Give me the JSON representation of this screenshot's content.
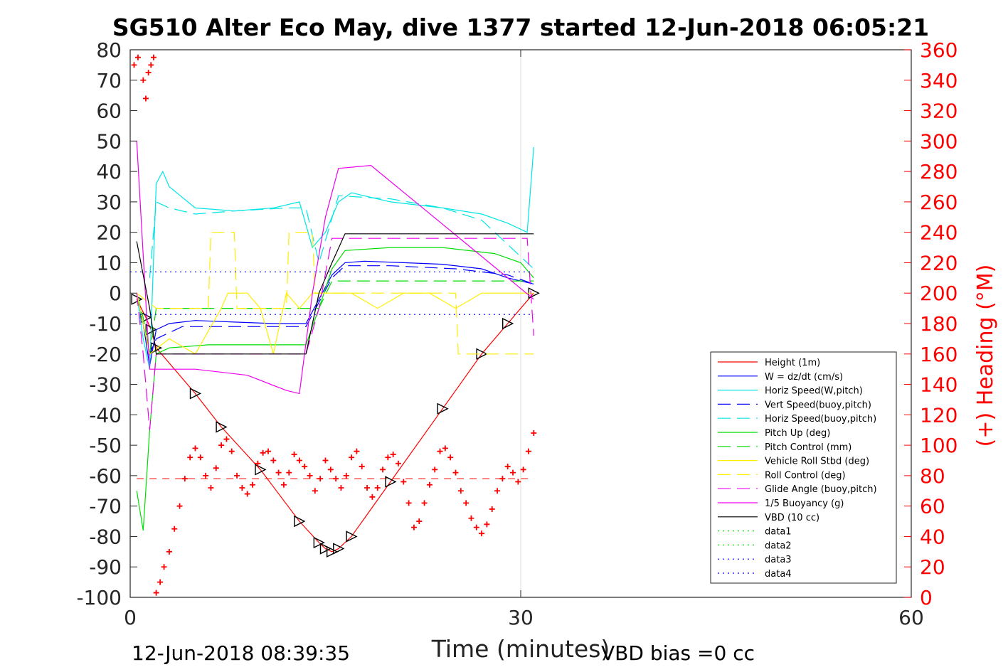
{
  "chart_data": {
    "type": "line",
    "title": "SG510 Alter Eco May, dive 1377 started 12-Jun-2018 06:05:21",
    "xlabel": "Time (minutes)",
    "ylabel_right": "(+) Heading (°M)",
    "xlim": [
      0,
      60
    ],
    "ylim": [
      -100,
      80
    ],
    "ylim_right": [
      0,
      360
    ],
    "x_ticks": [
      "0",
      "30",
      "60"
    ],
    "y_ticks": [
      "80",
      "70",
      "60",
      "50",
      "40",
      "30",
      "20",
      "10",
      "0",
      "-10",
      "-20",
      "-30",
      "-40",
      "-50",
      "-60",
      "-70",
      "-80",
      "-90",
      "-100"
    ],
    "y_right_ticks": [
      "360",
      "340",
      "320",
      "300",
      "280",
      "260",
      "240",
      "220",
      "200",
      "180",
      "160",
      "140",
      "120",
      "100",
      "80",
      "60",
      "40",
      "20",
      "0"
    ],
    "footer_left": "12-Jun-2018 08:39:35",
    "footer_right": "VBD bias =0 cc",
    "grid": "x-only at 30",
    "legend_position": "lower-right",
    "series": [
      {
        "name": "Height (1m)",
        "color": "#ff0000",
        "style": "solid",
        "marker": "triangle",
        "x": [
          0.5,
          1.2,
          1.6,
          2.0,
          5.0,
          7.0,
          10.0,
          13.0,
          14.5,
          15.0,
          15.5,
          16.0,
          17.0,
          20.0,
          24.0,
          27.0,
          29.0,
          31.0
        ],
        "y": [
          -2,
          -8,
          -12,
          -18,
          -33,
          -44,
          -58,
          -75,
          -82,
          -84,
          -85,
          -84,
          -80,
          -62,
          -38,
          -20,
          -10,
          0
        ]
      },
      {
        "name": "W = dz/dt (cm/s)",
        "color": "#0000ff",
        "style": "solid",
        "x": [
          0.5,
          1.0,
          1.5,
          2.0,
          3.0,
          5.0,
          8.0,
          11.0,
          13.5,
          14.5,
          15.5,
          16.5,
          18.0,
          21.0,
          24.0,
          27.0,
          29.0,
          31.0
        ],
        "y": [
          0,
          -10,
          -24,
          -12,
          -10,
          -9,
          -9.5,
          -10,
          -10,
          -2,
          6,
          10,
          10.5,
          10,
          9.5,
          8,
          5,
          3
        ]
      },
      {
        "name": "Horiz Speed(W,pitch)",
        "color": "#00e5e5",
        "style": "solid",
        "x": [
          0.5,
          1.0,
          1.5,
          2.0,
          2.5,
          3.0,
          5.0,
          8.0,
          11.0,
          13.0,
          14.0,
          15.0,
          16.0,
          17.0,
          20.0,
          24.0,
          27.0,
          29.0,
          30.5,
          31.0
        ],
        "y": [
          0,
          -15,
          -25,
          36,
          40,
          35,
          28,
          27,
          28,
          30,
          15,
          20,
          30,
          33,
          30,
          28,
          26,
          23,
          20,
          48
        ]
      },
      {
        "name": "Vert Speed(buoy,pitch)",
        "color": "#0000ff",
        "style": "dashed",
        "x": [
          0.5,
          1.5,
          2.0,
          4.0,
          8.0,
          12.0,
          13.5,
          14.5,
          15.5,
          16.5,
          20.0,
          25.0,
          29.0,
          31.0
        ],
        "y": [
          0,
          -20,
          -15,
          -11,
          -11,
          -11,
          -11,
          -3,
          5,
          9,
          9,
          8,
          6,
          3
        ]
      },
      {
        "name": "Horiz Speed(buoy,pitch)",
        "color": "#00e5e5",
        "style": "dashed",
        "x": [
          1.5,
          2.0,
          3.0,
          5.0,
          8.0,
          12.0,
          13.5,
          14.5,
          16.0,
          20.0,
          24.0,
          27.0,
          29.0,
          31.0
        ],
        "y": [
          5,
          30,
          28,
          26,
          27,
          28,
          28,
          10,
          32,
          31,
          28,
          24,
          16,
          8
        ]
      },
      {
        "name": "Pitch Up (deg)",
        "color": "#00dd00",
        "style": "solid",
        "x": [
          0.5,
          1.0,
          1.5,
          2.0,
          3.0,
          6.0,
          10.0,
          13.5,
          14.5,
          15.5,
          16.5,
          20.0,
          24.0,
          28.0,
          30.0,
          31.0
        ],
        "y": [
          -65,
          -78,
          -45,
          -20,
          -18,
          -17,
          -17,
          -17,
          -5,
          8,
          14,
          15,
          15,
          13,
          10,
          5
        ]
      },
      {
        "name": "Pitch Control (mm)",
        "color": "#00dd00",
        "style": "dashed",
        "x": [
          0.5,
          1.0,
          1.5,
          2.0,
          13.5,
          14.5,
          15.5,
          30.0,
          31.0
        ],
        "y": [
          0,
          -8,
          -20,
          -5,
          -5,
          -5,
          4,
          4,
          4
        ]
      },
      {
        "name": "Vehicle Roll Stbd (deg)",
        "color": "#ffee00",
        "style": "solid",
        "x": [
          0.5,
          1.5,
          3.0,
          5.0,
          7.0,
          7.5,
          9.0,
          10.0,
          11.0,
          12.0,
          13.0,
          14.0,
          15.0,
          17.0,
          19.0,
          21.0,
          23.0,
          25.0,
          27.0,
          29.0,
          31.0
        ],
        "y": [
          0,
          -20,
          -15,
          -20,
          -5,
          0,
          0,
          -5,
          -20,
          0,
          -5,
          0,
          0,
          0,
          -5,
          0,
          0,
          -5,
          0,
          0,
          0
        ]
      },
      {
        "name": "Roll Control (deg)",
        "color": "#ffee00",
        "style": "dashed",
        "x": [
          0.5,
          2.0,
          5.0,
          6.0,
          6.2,
          8.0,
          8.2,
          12.0,
          12.2,
          14.0,
          14.2,
          25.0,
          25.2,
          31.0
        ],
        "y": [
          0,
          -5,
          -5,
          -5,
          20,
          20,
          -5,
          -5,
          20,
          20,
          0,
          0,
          -20,
          -20
        ]
      },
      {
        "name": "Glide Angle (buoy,pitch)",
        "color": "#ee00ee",
        "style": "dashed",
        "x": [
          0.5,
          1.0,
          1.5,
          2.0,
          3.0,
          8.0,
          13.5,
          14.5,
          15.5,
          17.0,
          22.0,
          28.0,
          30.5,
          31.0
        ],
        "y": [
          0,
          -20,
          -45,
          -20,
          -20,
          -20,
          -20,
          -5,
          18,
          18,
          18,
          18,
          18,
          -14
        ]
      },
      {
        "name": "1/5 Buoyancy (g)",
        "color": "#ee00ee",
        "style": "solid",
        "x": [
          0.5,
          1.5,
          2.0,
          5.0,
          9.0,
          12.0,
          13.0,
          14.0,
          15.0,
          16.0,
          18.5,
          31.0
        ],
        "y": [
          50,
          -25,
          -25,
          -25,
          -27,
          -32,
          -33,
          0,
          25,
          41,
          42,
          -2
        ]
      },
      {
        "name": "VBD (10 cc)",
        "color": "#000000",
        "style": "solid",
        "x": [
          0.5,
          1.5,
          2.0,
          13.5,
          14.5,
          15.5,
          16.5,
          31.0
        ],
        "y": [
          17,
          -5,
          -20,
          -20,
          0,
          10,
          19.5,
          19.5
        ]
      },
      {
        "name": "data1",
        "color": "#00dd00",
        "style": "dotted",
        "x": [],
        "y": []
      },
      {
        "name": "data2",
        "color": "#00dd00",
        "style": "dotted",
        "x": [],
        "y": []
      },
      {
        "name": "data3",
        "color": "#0000ff",
        "style": "dotted",
        "x": [
          0,
          31
        ],
        "y": [
          7,
          7
        ]
      },
      {
        "name": "data4",
        "color": "#0000ff",
        "style": "dotted",
        "x": [
          0,
          31
        ],
        "y": [
          -7,
          -7
        ]
      }
    ],
    "heading": {
      "color": "#ff0000",
      "marker": "plus",
      "reference_line": 78,
      "x": [
        0.3,
        0.6,
        1.0,
        1.2,
        1.4,
        1.6,
        1.8,
        2.0,
        2.3,
        2.6,
        3.0,
        3.4,
        3.8,
        4.2,
        4.6,
        5.0,
        5.4,
        5.8,
        6.2,
        6.6,
        7.0,
        7.4,
        7.8,
        8.2,
        8.6,
        9.0,
        9.4,
        9.8,
        10.2,
        10.6,
        11.0,
        11.4,
        11.8,
        12.2,
        12.6,
        13.0,
        13.4,
        13.8,
        14.2,
        14.6,
        15.0,
        15.4,
        15.8,
        16.2,
        16.6,
        17.0,
        17.4,
        17.8,
        18.2,
        18.6,
        19.0,
        19.4,
        19.8,
        20.2,
        20.6,
        21.0,
        21.4,
        21.8,
        22.2,
        22.6,
        23.0,
        23.4,
        23.8,
        24.2,
        24.6,
        25.0,
        25.4,
        25.8,
        26.2,
        26.6,
        27.0,
        27.4,
        27.8,
        28.2,
        28.6,
        29.0,
        29.4,
        29.8,
        30.2,
        30.6,
        31.0
      ],
      "y": [
        350,
        355,
        340,
        328,
        345,
        350,
        355,
        3,
        10,
        20,
        30,
        45,
        60,
        78,
        92,
        98,
        92,
        80,
        72,
        85,
        100,
        104,
        96,
        80,
        72,
        68,
        74,
        88,
        95,
        96,
        90,
        82,
        74,
        82,
        94,
        90,
        86,
        80,
        70,
        78,
        90,
        84,
        78,
        72,
        80,
        92,
        96,
        86,
        72,
        66,
        72,
        84,
        92,
        94,
        88,
        76,
        62,
        46,
        50,
        62,
        74,
        84,
        96,
        98,
        92,
        82,
        70,
        62,
        52,
        46,
        42,
        48,
        58,
        70,
        78,
        86,
        82,
        76,
        84,
        96,
        108
      ]
    }
  },
  "legend_entries": [
    "Height (1m)",
    "W = dz/dt (cm/s)",
    "Horiz Speed(W,pitch)",
    "Vert Speed(buoy,pitch)",
    "Horiz Speed(buoy,pitch)",
    "Pitch Up (deg)",
    "Pitch Control (mm)",
    "Vehicle Roll Stbd (deg)",
    "Roll Control (deg)",
    "Glide Angle (buoy,pitch)",
    "1/5 Buoyancy (g)",
    "VBD (10 cc)",
    "data1",
    "data2",
    "data3",
    "data4"
  ]
}
